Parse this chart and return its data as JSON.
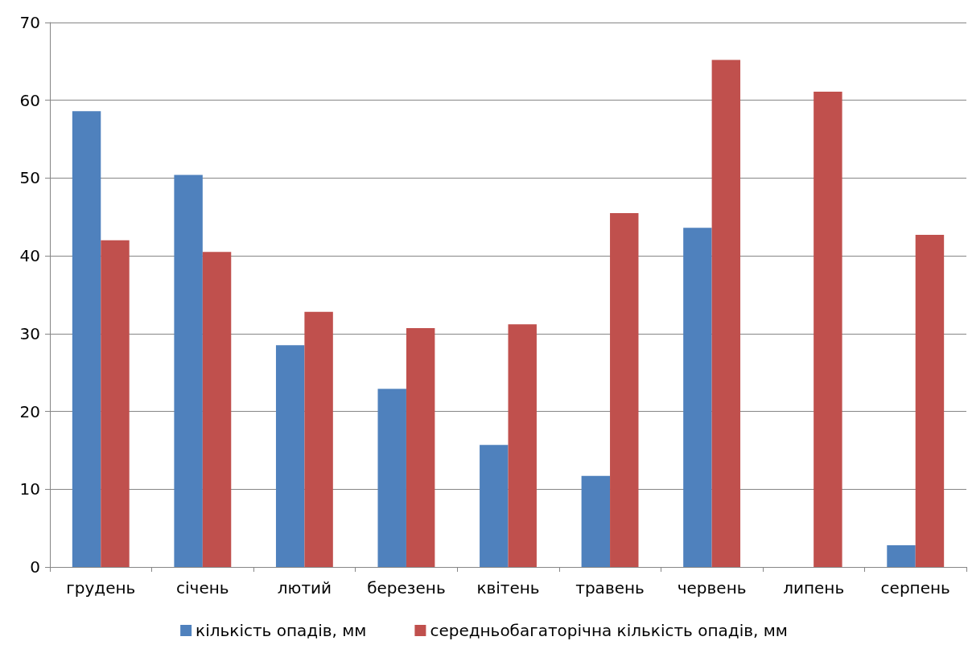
{
  "chart_data": {
    "type": "bar",
    "categories": [
      "грудень",
      "січень",
      "лютий",
      "березень",
      "квітень",
      "травень",
      "червень",
      "липень",
      "серпень"
    ],
    "series": [
      {
        "name": "кількість опадів, мм",
        "color": "#4f81bd",
        "values": [
          58.6,
          50.4,
          28.5,
          22.9,
          15.7,
          11.7,
          43.6,
          0,
          2.8
        ]
      },
      {
        "name": "середньобагаторічна кількість опадів, мм",
        "color": "#c0504d",
        "values": [
          42.0,
          40.5,
          32.8,
          30.7,
          31.2,
          45.5,
          65.2,
          61.1,
          42.7
        ]
      }
    ],
    "ylim": [
      0,
      70
    ],
    "yticks": [
      0,
      10,
      20,
      30,
      40,
      50,
      60,
      70
    ],
    "grid": "y",
    "legend": "bottom"
  }
}
